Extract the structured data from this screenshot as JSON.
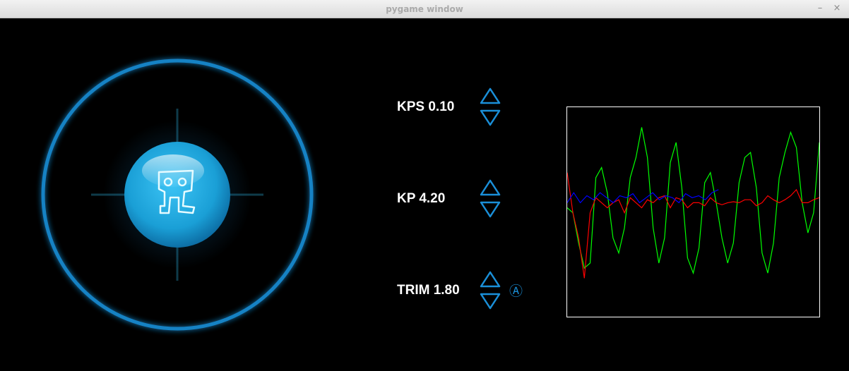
{
  "window": {
    "title": "pygame window",
    "min_glyph": "–",
    "close_glyph": "×"
  },
  "controls": [
    {
      "label": "KPS 0.10"
    },
    {
      "label": "KP 4.20"
    },
    {
      "label": "TRIM 1.80",
      "auto_glyph": "Ⓐ"
    }
  ],
  "colors": {
    "accent": "#1a8fd8",
    "orb": "#1a9fd6",
    "plot_border": "#ffffff"
  },
  "icons": [
    "robot-logo-icon",
    "up-arrow-icon",
    "down-arrow-icon",
    "auto-mode-icon"
  ],
  "chart_data": {
    "type": "line",
    "title": "",
    "xlabel": "",
    "ylabel": "",
    "grid": false,
    "series": [
      {
        "color": "#00ff00",
        "values": [
          0,
          -0.05,
          -0.35,
          -0.6,
          -0.55,
          0.3,
          0.4,
          0.15,
          -0.3,
          -0.45,
          -0.2,
          0.3,
          0.5,
          0.8,
          0.5,
          -0.2,
          -0.55,
          -0.3,
          0.45,
          0.65,
          0.2,
          -0.5,
          -0.65,
          -0.4,
          0.25,
          0.35,
          0.05,
          -0.3,
          -0.55,
          -0.35,
          0.25,
          0.5,
          0.55,
          0.2,
          -0.45,
          -0.65,
          -0.35,
          0.3,
          0.55,
          0.75,
          0.6,
          0.05,
          -0.25,
          -0.05,
          0.65
        ]
      },
      {
        "color": "#ff0000",
        "values": [
          0.35,
          -0.05,
          -0.3,
          -0.7,
          -0.05,
          0.1,
          0.05,
          0,
          0.05,
          0.08,
          -0.05,
          0.1,
          0.05,
          0,
          0.08,
          0.05,
          0.1,
          0.12,
          0,
          0.1,
          0.08,
          0,
          0.05,
          0.05,
          0.02,
          0.1,
          0.05,
          0.03,
          0.05,
          0.06,
          0.05,
          0.08,
          0.08,
          0.02,
          0.05,
          0.12,
          0.08,
          0.05,
          0.08,
          0.12,
          0.18,
          0.05,
          0.05,
          0.08,
          0.1
        ]
      },
      {
        "color": "#0000ff",
        "values": [
          0.05,
          0.15,
          0.05,
          0.12,
          0.08,
          0.15,
          0.1,
          0.05,
          0.12,
          0.1,
          0.14,
          0.05,
          0.1,
          0.15,
          0.08,
          0.12,
          0.1,
          0.05,
          0.14,
          0.1,
          0.12,
          0.08,
          0.15,
          0.18
        ]
      }
    ]
  }
}
